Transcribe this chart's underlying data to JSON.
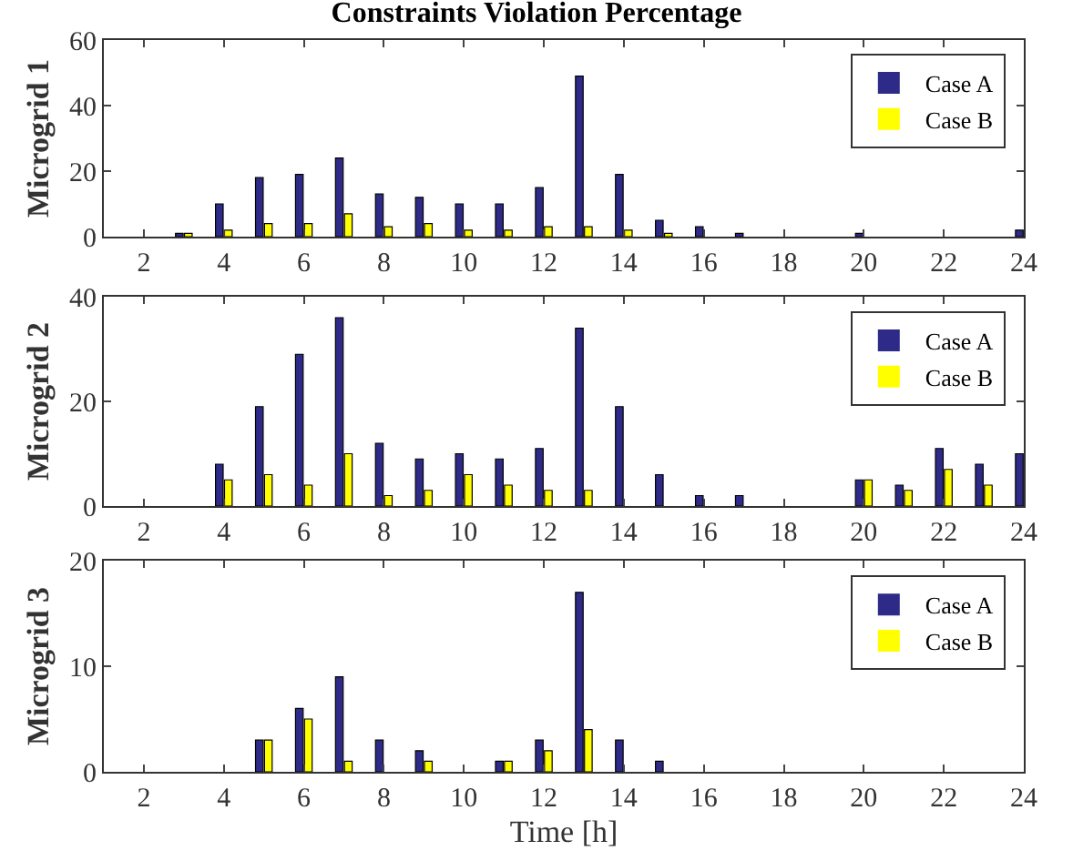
{
  "chart_data": [
    {
      "type": "bar",
      "title": "Constraints Violation Percentage",
      "ylabel": "Microgrid 1",
      "x": [
        1,
        2,
        3,
        4,
        5,
        6,
        7,
        8,
        9,
        10,
        11,
        12,
        13,
        14,
        15,
        16,
        17,
        18,
        19,
        20,
        21,
        22,
        23,
        24
      ],
      "xlim": [
        1,
        24
      ],
      "xticks": [
        2,
        4,
        6,
        8,
        10,
        12,
        14,
        16,
        18,
        20,
        22,
        24
      ],
      "ylim": [
        0,
        60
      ],
      "yticks": [
        0,
        20,
        40,
        60
      ],
      "legend": "top right",
      "series": [
        {
          "name": "Case A",
          "color": "#2e2a87",
          "values": [
            0,
            0,
            1,
            10,
            18,
            19,
            24,
            13,
            12,
            10,
            10,
            15,
            49,
            19,
            5,
            3,
            1,
            0,
            0,
            1,
            0,
            0,
            0,
            2
          ]
        },
        {
          "name": "Case B",
          "color": "#ffff00",
          "values": [
            0,
            0,
            1,
            2,
            4,
            4,
            7,
            3,
            4,
            2,
            2,
            3,
            3,
            2,
            1,
            0,
            0,
            0,
            0,
            0,
            0,
            0,
            0,
            0
          ]
        }
      ]
    },
    {
      "type": "bar",
      "ylabel": "Microgrid 2",
      "x": [
        1,
        2,
        3,
        4,
        5,
        6,
        7,
        8,
        9,
        10,
        11,
        12,
        13,
        14,
        15,
        16,
        17,
        18,
        19,
        20,
        21,
        22,
        23,
        24
      ],
      "xlim": [
        1,
        24
      ],
      "xticks": [
        2,
        4,
        6,
        8,
        10,
        12,
        14,
        16,
        18,
        20,
        22,
        24
      ],
      "ylim": [
        0,
        40
      ],
      "yticks": [
        0,
        20,
        40
      ],
      "legend": "top right",
      "series": [
        {
          "name": "Case A",
          "color": "#2e2a87",
          "values": [
            0,
            0,
            0,
            8,
            19,
            29,
            36,
            12,
            9,
            10,
            9,
            11,
            34,
            19,
            6,
            2,
            2,
            0,
            0,
            5,
            4,
            11,
            8,
            10
          ]
        },
        {
          "name": "Case B",
          "color": "#ffff00",
          "values": [
            0,
            0,
            0,
            5,
            6,
            4,
            10,
            2,
            3,
            6,
            4,
            3,
            3,
            0,
            0,
            0,
            0,
            0,
            0,
            5,
            3,
            7,
            4,
            null
          ]
        }
      ]
    },
    {
      "type": "bar",
      "ylabel": "Microgrid 3",
      "xlabel": "Time [h]",
      "x": [
        1,
        2,
        3,
        4,
        5,
        6,
        7,
        8,
        9,
        10,
        11,
        12,
        13,
        14,
        15,
        16,
        17,
        18,
        19,
        20,
        21,
        22,
        23,
        24
      ],
      "xlim": [
        1,
        24
      ],
      "xticks": [
        2,
        4,
        6,
        8,
        10,
        12,
        14,
        16,
        18,
        20,
        22,
        24
      ],
      "ylim": [
        0,
        20
      ],
      "yticks": [
        0,
        10,
        20
      ],
      "legend": "top right",
      "series": [
        {
          "name": "Case A",
          "color": "#2e2a87",
          "values": [
            0,
            0,
            0,
            0,
            3,
            6,
            9,
            3,
            2,
            0,
            1,
            3,
            17,
            3,
            1,
            0,
            0,
            0,
            0,
            0,
            0,
            0,
            0,
            0
          ]
        },
        {
          "name": "Case B",
          "color": "#ffff00",
          "values": [
            0,
            0,
            0,
            0,
            3,
            5,
            1,
            0,
            1,
            0,
            1,
            2,
            4,
            0,
            0,
            0,
            0,
            0,
            0,
            0,
            0,
            0,
            0,
            0
          ]
        }
      ]
    }
  ]
}
